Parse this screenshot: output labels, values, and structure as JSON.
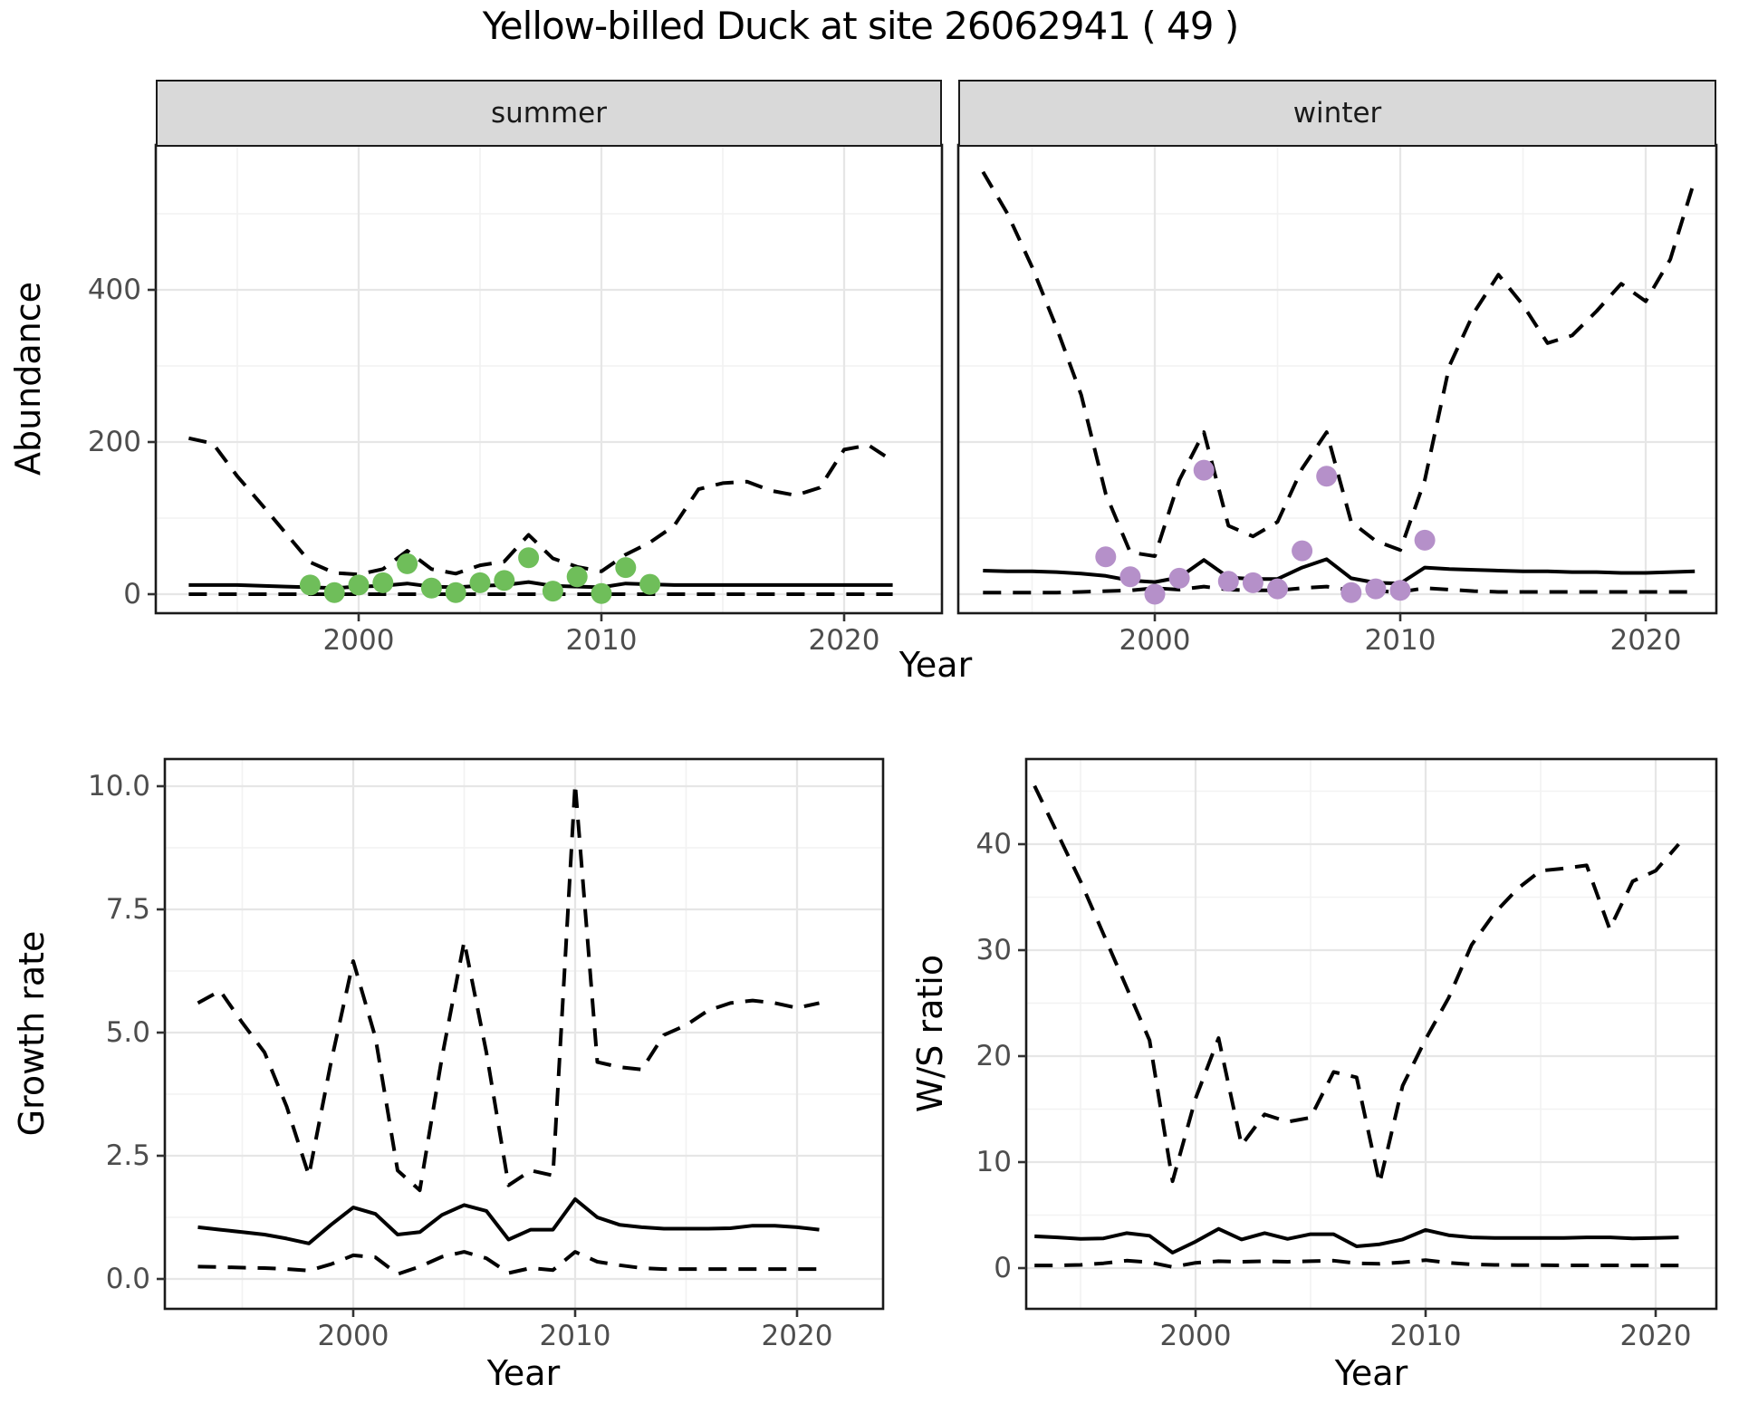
{
  "title": "Yellow-billed Duck at site 26062941 ( 49 )",
  "facets": [
    "summer",
    "winter"
  ],
  "axes": {
    "abundance_label": "Abundance",
    "growth_label": "Growth rate",
    "ws_label": "W/S ratio",
    "x_label": "Year"
  },
  "colors": {
    "summer_point": "#6FBE5A",
    "winter_point": "#B590C9",
    "line": "#000000",
    "strip_bg": "#D9D9D9",
    "grid_major": "#E6E6E6",
    "grid_minor": "#F2F2F2",
    "tick_label": "#4D4D4D",
    "tick_mark": "#333333",
    "panel_border": "#1A1A1A"
  },
  "chart_data": [
    {
      "id": "abundance-summer",
      "type": "line",
      "facet": "summer",
      "ylabel": "Abundance",
      "xlabel": "Year",
      "xlim": [
        1991.6,
        2024.0
      ],
      "ylim": [
        -25,
        590
      ],
      "x_tick_values": [
        2000,
        2010,
        2020
      ],
      "x_tick_labels": [
        "2000",
        "2010",
        "2020"
      ],
      "x_minor": [
        1995,
        2005,
        2015
      ],
      "y_tick_values": [
        0,
        200,
        400
      ],
      "y_tick_labels": [
        "0",
        "200",
        "400"
      ],
      "y_minor": [
        100,
        300,
        500
      ],
      "show_y_tick_labels": true,
      "x": [
        1993,
        1994,
        1995,
        1996,
        1997,
        1998,
        1999,
        2000,
        2001,
        2002,
        2003,
        2004,
        2005,
        2006,
        2007,
        2008,
        2009,
        2010,
        2011,
        2012,
        2013,
        2014,
        2015,
        2016,
        2017,
        2018,
        2019,
        2020,
        2021,
        2022
      ],
      "series": [
        {
          "name": "upper-95ci",
          "style": "dashed",
          "values": [
            205,
            198,
            155,
            118,
            80,
            42,
            28,
            26,
            33,
            57,
            33,
            27,
            38,
            43,
            78,
            47,
            36,
            30,
            52,
            68,
            90,
            138,
            146,
            148,
            136,
            130,
            140,
            190,
            196,
            175
          ]
        },
        {
          "name": "median",
          "style": "solid",
          "values": [
            12,
            12,
            12,
            11,
            10,
            9,
            8,
            10,
            11,
            14,
            10,
            9,
            11,
            12,
            16,
            11,
            10,
            9,
            14,
            13,
            12,
            12,
            12,
            12,
            12,
            12,
            12,
            12,
            12,
            12
          ]
        },
        {
          "name": "lower-95ci",
          "style": "dashed",
          "values": [
            0,
            0,
            0,
            0,
            0,
            0,
            0,
            0,
            0,
            0,
            0,
            0,
            0,
            0,
            0,
            0,
            0,
            0,
            0,
            0,
            0,
            0,
            0,
            0,
            0,
            0,
            0,
            0,
            0,
            0
          ]
        }
      ],
      "points": {
        "name": "observed-summer-counts",
        "color": "#6FBE5A",
        "x": [
          1998,
          1999,
          2000,
          2001,
          2002,
          2003,
          2004,
          2005,
          2006,
          2007,
          2008,
          2009,
          2010,
          2011,
          2012
        ],
        "y": [
          12,
          2,
          12,
          15,
          40,
          8,
          2,
          15,
          18,
          48,
          4,
          23,
          1,
          35,
          13
        ]
      }
    },
    {
      "id": "abundance-winter",
      "type": "line",
      "facet": "winter",
      "ylabel": "Abundance",
      "xlabel": "Year",
      "xlim": [
        1992.0,
        2024.9
      ],
      "ylim": [
        -25,
        590
      ],
      "x_tick_values": [
        2000,
        2010,
        2020
      ],
      "x_tick_labels": [
        "2000",
        "2010",
        "2020"
      ],
      "x_minor": [
        1995,
        2005,
        2015
      ],
      "y_tick_values": [
        0,
        200,
        400
      ],
      "y_tick_labels": [
        "0",
        "200",
        "400"
      ],
      "y_minor": [
        100,
        300,
        500
      ],
      "show_y_tick_labels": false,
      "x": [
        1993,
        1994,
        1995,
        1996,
        1997,
        1998,
        1999,
        2000,
        2001,
        2002,
        2003,
        2004,
        2005,
        2006,
        2007,
        2008,
        2009,
        2010,
        2011,
        2012,
        2013,
        2014,
        2015,
        2016,
        2017,
        2018,
        2019,
        2020,
        2021,
        2022
      ],
      "series": [
        {
          "name": "upper-95ci",
          "style": "dashed",
          "values": [
            555,
            500,
            430,
            350,
            262,
            132,
            55,
            50,
            150,
            213,
            90,
            76,
            95,
            165,
            213,
            95,
            70,
            58,
            150,
            300,
            370,
            420,
            380,
            330,
            340,
            372,
            408,
            385,
            440,
            545
          ]
        },
        {
          "name": "median",
          "style": "solid",
          "values": [
            31,
            30,
            30,
            29,
            27,
            24,
            18,
            16,
            22,
            45,
            22,
            20,
            20,
            35,
            46,
            21,
            15,
            14,
            35,
            33,
            32,
            31,
            30,
            30,
            29,
            29,
            28,
            28,
            29,
            30
          ]
        },
        {
          "name": "lower-95ci",
          "style": "dashed",
          "values": [
            2,
            2,
            2,
            2,
            3,
            4,
            5,
            8,
            6,
            10,
            6,
            5,
            5,
            8,
            10,
            5,
            4,
            3,
            8,
            6,
            4,
            3,
            3,
            3,
            3,
            3,
            3,
            3,
            3,
            3
          ]
        }
      ],
      "points": {
        "name": "observed-winter-counts",
        "color": "#B590C9",
        "x": [
          1998,
          1999,
          2000,
          2001,
          2002,
          2003,
          2004,
          2005,
          2006,
          2007,
          2008,
          2009,
          2010,
          2011
        ],
        "y": [
          49,
          23,
          0,
          21,
          163,
          17,
          15,
          7,
          57,
          155,
          2,
          7,
          5,
          71
        ]
      }
    },
    {
      "id": "growth-rate",
      "type": "line",
      "facet": null,
      "ylabel": "Growth rate",
      "xlabel": "Year",
      "xlim": [
        1991.5,
        2023.9
      ],
      "ylim": [
        -0.6,
        10.55
      ],
      "x_tick_values": [
        2000,
        2010,
        2020
      ],
      "x_tick_labels": [
        "2000",
        "2010",
        "2020"
      ],
      "x_minor": [
        1995,
        2005,
        2015
      ],
      "y_tick_values": [
        0.0,
        2.5,
        5.0,
        7.5,
        10.0
      ],
      "y_tick_labels": [
        "0.0",
        "2.5",
        "5.0",
        "7.5",
        "10.0"
      ],
      "y_minor": [
        1.25,
        3.75,
        6.25,
        8.75
      ],
      "show_y_tick_labels": true,
      "x": [
        1993,
        1994,
        1995,
        1996,
        1997,
        1998,
        1999,
        2000,
        2001,
        2002,
        2003,
        2004,
        2005,
        2006,
        2007,
        2008,
        2009,
        2010,
        2011,
        2012,
        2013,
        2014,
        2015,
        2016,
        2017,
        2018,
        2019,
        2020,
        2021
      ],
      "series": [
        {
          "name": "upper-95ci",
          "style": "dashed",
          "values": [
            5.6,
            5.85,
            5.2,
            4.6,
            3.5,
            2.1,
            4.4,
            6.45,
            4.9,
            2.2,
            1.8,
            4.5,
            6.85,
            4.6,
            1.9,
            2.2,
            2.1,
            10.05,
            4.4,
            4.3,
            4.25,
            4.95,
            5.15,
            5.45,
            5.6,
            5.65,
            5.6,
            5.5,
            5.6
          ]
        },
        {
          "name": "median",
          "style": "solid",
          "values": [
            1.05,
            1.0,
            0.95,
            0.9,
            0.82,
            0.72,
            1.1,
            1.45,
            1.32,
            0.9,
            0.95,
            1.3,
            1.5,
            1.38,
            0.8,
            1.0,
            1.0,
            1.62,
            1.25,
            1.1,
            1.05,
            1.02,
            1.02,
            1.02,
            1.03,
            1.08,
            1.08,
            1.05,
            1.0
          ]
        },
        {
          "name": "lower-95ci",
          "style": "dashed",
          "values": [
            0.25,
            0.24,
            0.23,
            0.22,
            0.2,
            0.17,
            0.3,
            0.48,
            0.44,
            0.1,
            0.25,
            0.45,
            0.55,
            0.42,
            0.12,
            0.22,
            0.18,
            0.55,
            0.35,
            0.28,
            0.22,
            0.2,
            0.2,
            0.2,
            0.2,
            0.2,
            0.2,
            0.2,
            0.2
          ]
        }
      ],
      "points": null
    },
    {
      "id": "ws-ratio",
      "type": "line",
      "facet": null,
      "ylabel": "W/S ratio",
      "xlabel": "Year",
      "xlim": [
        1992.6,
        2022.6
      ],
      "ylim": [
        -3.8,
        48.0
      ],
      "x_tick_values": [
        2000,
        2010,
        2020
      ],
      "x_tick_labels": [
        "2000",
        "2010",
        "2020"
      ],
      "x_minor": [
        1995,
        2005,
        2015
      ],
      "y_tick_values": [
        0,
        10,
        20,
        30,
        40
      ],
      "y_tick_labels": [
        "0",
        "10",
        "20",
        "30",
        "40"
      ],
      "y_minor": [
        5,
        15,
        25,
        35,
        45
      ],
      "show_y_tick_labels": true,
      "x": [
        1993,
        1994,
        1995,
        1996,
        1997,
        1998,
        1999,
        2000,
        2001,
        2002,
        2003,
        2004,
        2005,
        2006,
        2007,
        2008,
        2009,
        2010,
        2011,
        2012,
        2013,
        2014,
        2015,
        2016,
        2017,
        2018,
        2019,
        2020,
        2021
      ],
      "series": [
        {
          "name": "upper-95ci",
          "style": "dashed",
          "values": [
            45.5,
            41,
            36.5,
            31.5,
            26.5,
            21.5,
            8.2,
            16,
            21.7,
            11.6,
            14.5,
            13.8,
            14.2,
            18.5,
            18,
            8,
            17.2,
            21.6,
            25.5,
            30.5,
            33.5,
            35.8,
            37.5,
            37.7,
            38,
            32,
            36.5,
            37.5,
            40
          ]
        },
        {
          "name": "median",
          "style": "solid",
          "values": [
            3.0,
            2.9,
            2.75,
            2.8,
            3.3,
            3.05,
            1.45,
            2.5,
            3.7,
            2.7,
            3.3,
            2.75,
            3.2,
            3.2,
            2.05,
            2.25,
            2.7,
            3.6,
            3.1,
            2.9,
            2.85,
            2.85,
            2.85,
            2.85,
            2.9,
            2.9,
            2.8,
            2.85,
            2.9
          ]
        },
        {
          "name": "lower-95ci",
          "style": "dashed",
          "values": [
            0.25,
            0.25,
            0.3,
            0.45,
            0.7,
            0.55,
            0.1,
            0.5,
            0.65,
            0.6,
            0.65,
            0.6,
            0.65,
            0.7,
            0.45,
            0.4,
            0.55,
            0.75,
            0.5,
            0.35,
            0.3,
            0.28,
            0.27,
            0.26,
            0.26,
            0.26,
            0.25,
            0.25,
            0.25
          ]
        }
      ],
      "points": null
    }
  ]
}
